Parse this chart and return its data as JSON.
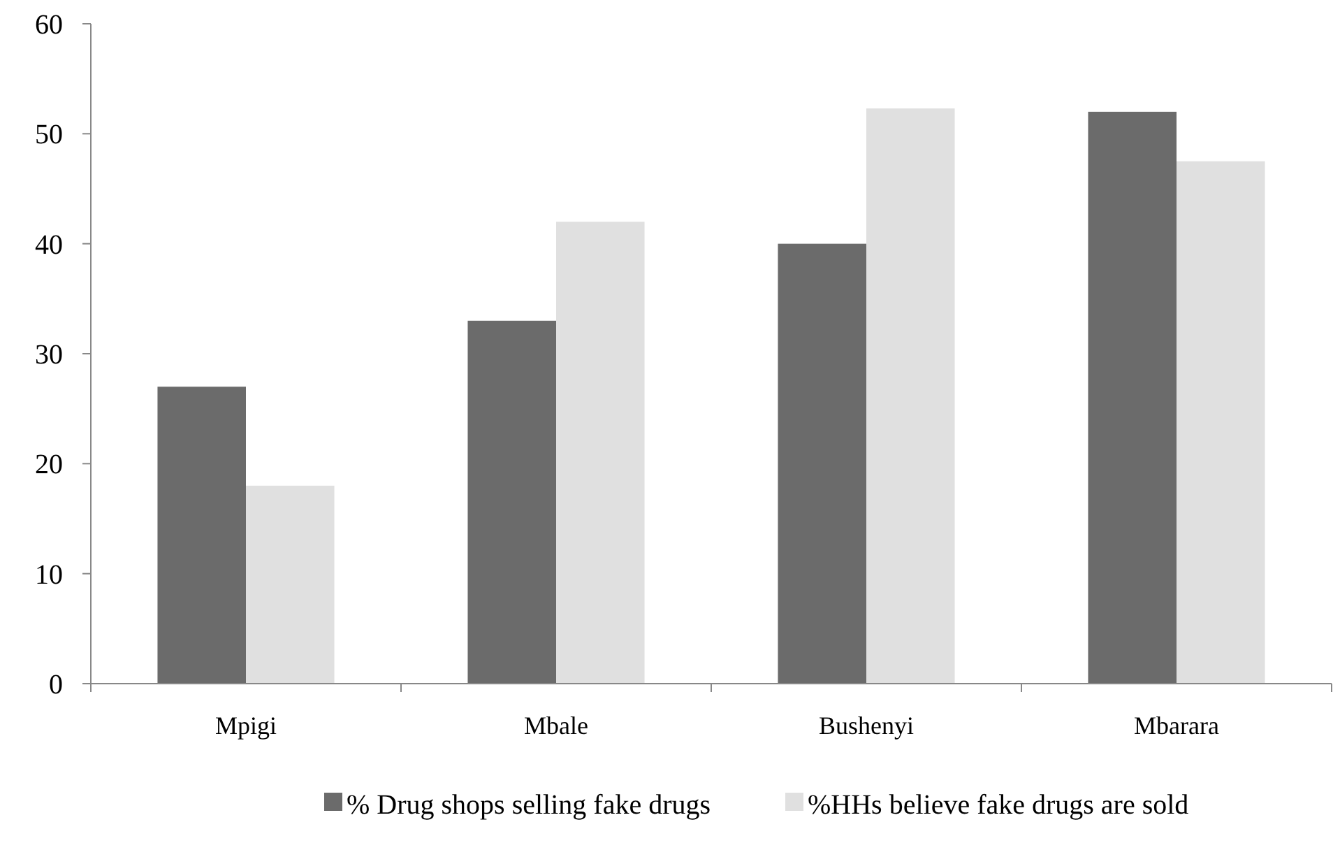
{
  "chart_data": {
    "type": "bar",
    "categories": [
      "Mpigi",
      "Mbale",
      "Bushenyi",
      "Mbarara"
    ],
    "series": [
      {
        "name": "% Drug shops selling fake drugs",
        "color": "#6b6b6b",
        "values": [
          27,
          33,
          40,
          52
        ]
      },
      {
        "name": "%HHs believe fake drugs are sold",
        "color": "#e0e0e0",
        "values": [
          18,
          42,
          52.3,
          47.5
        ]
      }
    ],
    "ylim": [
      0,
      60
    ],
    "yticks": [
      0,
      10,
      20,
      30,
      40,
      50,
      60
    ],
    "grid": false,
    "legend": "bottom"
  }
}
